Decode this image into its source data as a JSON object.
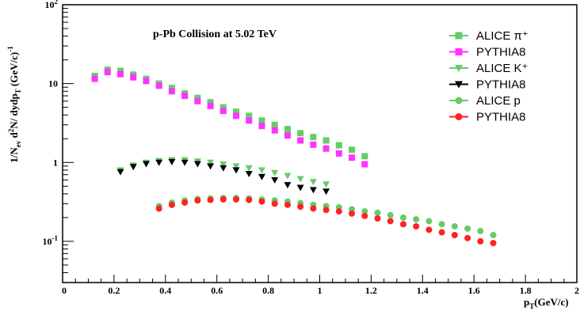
{
  "chart_data": {
    "type": "scatter",
    "title": "p-Pb Collision at 5.02 TeV",
    "xlabel": "p_T(GeV/c)",
    "ylabel": "1/N_ev d²N/ dydp_T (GeV/c)^-1",
    "xlim": [
      0,
      2
    ],
    "ylim": [
      0.03,
      100
    ],
    "y_log": true,
    "x_ticks": [
      "0",
      "0.2",
      "0.4",
      "0.6",
      "0.8",
      "1",
      "1.2",
      "1.4",
      "1.6",
      "1.8",
      "2"
    ],
    "y_ticks": [
      {
        "value": 0.1,
        "base": "10",
        "exp": "-1"
      },
      {
        "value": 1,
        "base": "1",
        "exp": ""
      },
      {
        "value": 10,
        "base": "10",
        "exp": ""
      },
      {
        "value": 100,
        "base": "10",
        "exp": "2"
      }
    ],
    "legend_position": "top-right",
    "series": [
      {
        "name": "ALICE π⁺",
        "marker": "square",
        "color": "#66cc66",
        "x": [
          0.125,
          0.175,
          0.225,
          0.275,
          0.325,
          0.375,
          0.425,
          0.475,
          0.525,
          0.575,
          0.625,
          0.675,
          0.725,
          0.775,
          0.825,
          0.875,
          0.925,
          0.975,
          1.025,
          1.075,
          1.125,
          1.175
        ],
        "y": [
          12.5,
          15.0,
          14.5,
          13.0,
          11.5,
          10.0,
          8.8,
          7.5,
          6.6,
          5.8,
          5.0,
          4.4,
          3.9,
          3.4,
          3.0,
          2.65,
          2.35,
          2.1,
          1.9,
          1.65,
          1.45,
          1.2
        ]
      },
      {
        "name": "PYTHIA8",
        "marker": "square",
        "color": "#ff33ff",
        "x": [
          0.125,
          0.175,
          0.225,
          0.275,
          0.325,
          0.375,
          0.425,
          0.475,
          0.525,
          0.575,
          0.625,
          0.675,
          0.725,
          0.775,
          0.825,
          0.875,
          0.925,
          0.975,
          1.025,
          1.075,
          1.125,
          1.175
        ],
        "y": [
          11.5,
          14.0,
          13.2,
          12.0,
          10.8,
          9.4,
          8.0,
          7.0,
          6.0,
          5.2,
          4.5,
          3.9,
          3.4,
          2.9,
          2.55,
          2.2,
          1.9,
          1.68,
          1.5,
          1.3,
          1.15,
          0.95
        ]
      },
      {
        "name": "ALICE K⁺",
        "marker": "triangle-down",
        "color": "#66cc66",
        "x": [
          0.225,
          0.275,
          0.325,
          0.375,
          0.425,
          0.475,
          0.525,
          0.575,
          0.625,
          0.675,
          0.725,
          0.775,
          0.825,
          0.875,
          0.925,
          0.975,
          1.025
        ],
        "y": [
          0.8,
          0.92,
          1.0,
          1.05,
          1.08,
          1.08,
          1.04,
          1.0,
          0.95,
          0.9,
          0.85,
          0.8,
          0.74,
          0.68,
          0.62,
          0.57,
          0.53
        ]
      },
      {
        "name": "PYTHIA8",
        "marker": "triangle-down",
        "color": "#000000",
        "x": [
          0.225,
          0.275,
          0.325,
          0.375,
          0.425,
          0.475,
          0.525,
          0.575,
          0.625,
          0.675,
          0.725,
          0.775,
          0.825,
          0.875,
          0.925,
          0.975,
          1.025
        ],
        "y": [
          0.76,
          0.88,
          0.96,
          1.0,
          1.02,
          1.0,
          0.96,
          0.9,
          0.85,
          0.8,
          0.72,
          0.66,
          0.6,
          0.52,
          0.48,
          0.45,
          0.43
        ]
      },
      {
        "name": "ALICE p",
        "marker": "circle",
        "color": "#66cc66",
        "x": [
          0.375,
          0.425,
          0.475,
          0.525,
          0.575,
          0.625,
          0.675,
          0.725,
          0.775,
          0.825,
          0.875,
          0.925,
          0.975,
          1.025,
          1.075,
          1.125,
          1.175,
          1.225,
          1.275,
          1.325,
          1.375,
          1.425,
          1.475,
          1.525,
          1.575,
          1.625,
          1.675
        ],
        "y": [
          0.28,
          0.31,
          0.33,
          0.345,
          0.35,
          0.355,
          0.355,
          0.35,
          0.34,
          0.33,
          0.32,
          0.305,
          0.29,
          0.28,
          0.27,
          0.255,
          0.24,
          0.23,
          0.215,
          0.2,
          0.19,
          0.18,
          0.165,
          0.155,
          0.145,
          0.135,
          0.12
        ]
      },
      {
        "name": "PYTHIA8",
        "marker": "circle",
        "color": "#ff2222",
        "x": [
          0.375,
          0.425,
          0.475,
          0.525,
          0.575,
          0.625,
          0.675,
          0.725,
          0.775,
          0.825,
          0.875,
          0.925,
          0.975,
          1.025,
          1.075,
          1.125,
          1.175,
          1.225,
          1.275,
          1.325,
          1.375,
          1.425,
          1.475,
          1.525,
          1.575,
          1.625,
          1.675
        ],
        "y": [
          0.26,
          0.29,
          0.31,
          0.33,
          0.335,
          0.34,
          0.34,
          0.335,
          0.32,
          0.3,
          0.29,
          0.275,
          0.26,
          0.25,
          0.24,
          0.225,
          0.21,
          0.195,
          0.18,
          0.165,
          0.155,
          0.14,
          0.13,
          0.12,
          0.11,
          0.1,
          0.095
        ]
      }
    ]
  }
}
